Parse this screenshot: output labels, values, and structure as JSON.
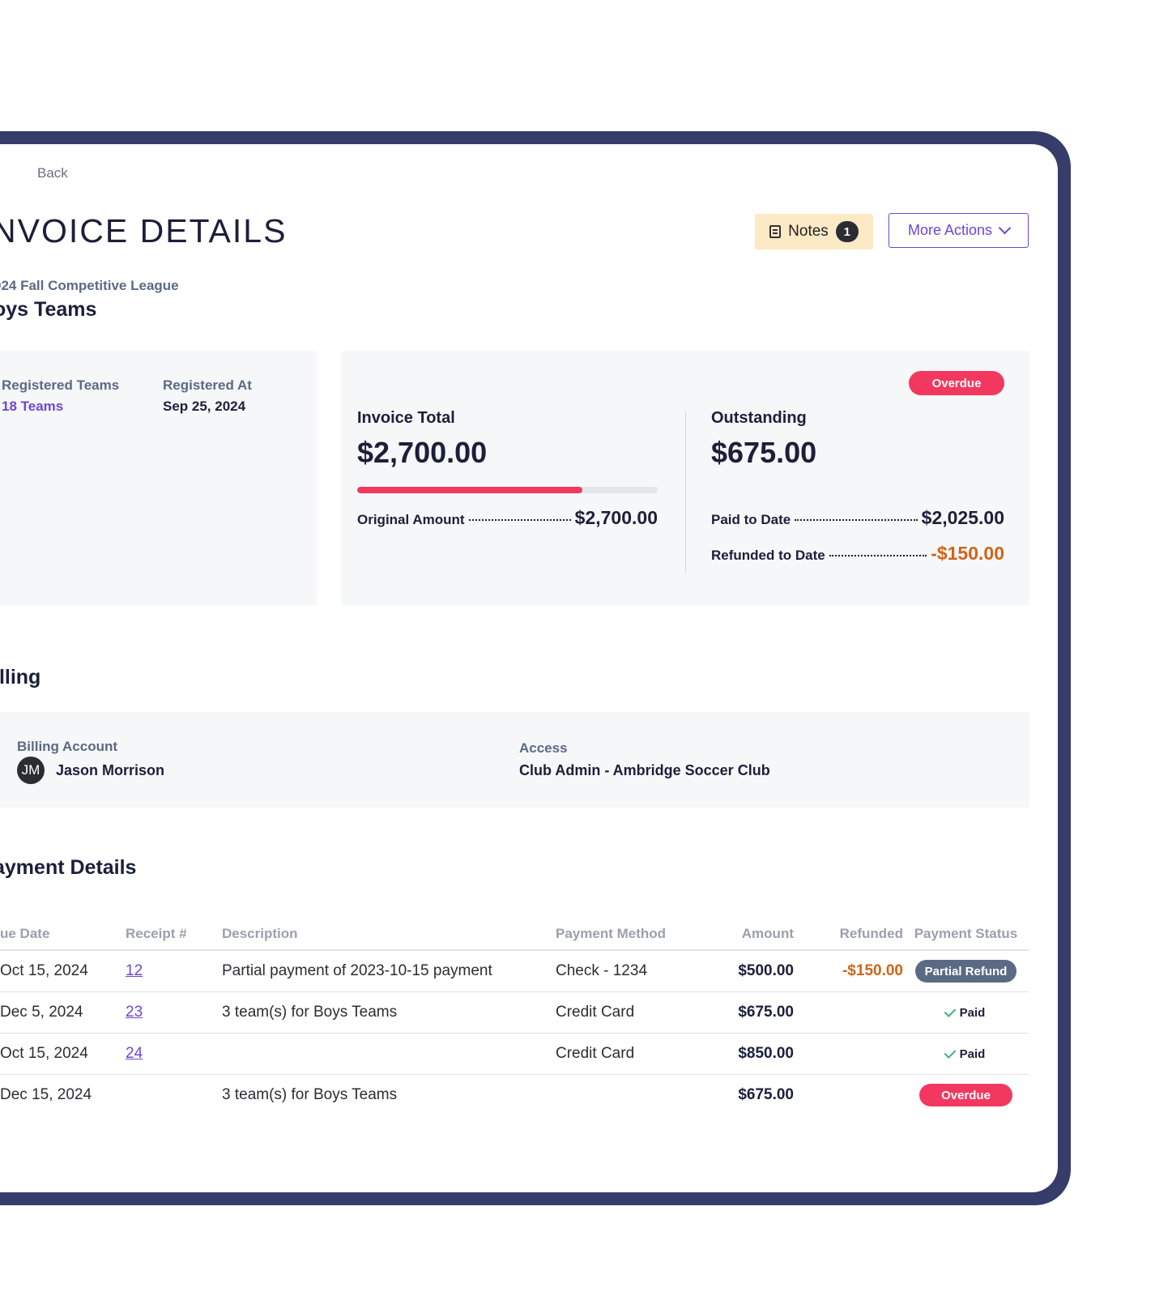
{
  "nav": {
    "back_label": "Back"
  },
  "page": {
    "title": "NVOICE DETAILS",
    "league": "024 Fall Competitive League",
    "group": "oys Teams"
  },
  "actions": {
    "notes_label": "Notes",
    "notes_count": "1",
    "more_actions_label": "More Actions"
  },
  "registration": {
    "teams_label": "Registered Teams",
    "teams_value": "18 Teams",
    "registered_at_label": "Registered At",
    "registered_at_value": "Sep 25, 2024"
  },
  "invoice": {
    "status_badge": "Overdue",
    "total_label": "Invoice Total",
    "total_value": "$2,700.00",
    "paid_fraction": 0.75,
    "original_label": "Original Amount",
    "original_value": "$2,700.00",
    "outstanding_label": "Outstanding",
    "outstanding_value": "$675.00",
    "paid_label": "Paid to Date",
    "paid_value": "$2,025.00",
    "refunded_label": "Refunded to Date",
    "refunded_value": "-$150.00"
  },
  "billing": {
    "section_title": "illing",
    "account_label": "Billing Account",
    "avatar_initials": "JM",
    "account_name": "Jason Morrison",
    "access_label": "Access",
    "access_value": "Club Admin - Ambridge Soccer Club"
  },
  "payments": {
    "section_title": "ayment Details",
    "columns": [
      "ue Date",
      "Receipt #",
      "Description",
      "Payment Method",
      "Amount",
      "Refunded",
      "Payment Status"
    ],
    "rows": [
      {
        "due_date": "Oct 15, 2024",
        "receipt": "12",
        "description": "Partial payment of 2023-10-15 payment",
        "method": "Check - 1234",
        "amount": "$500.00",
        "refunded": "-$150.00",
        "status": "Partial Refund"
      },
      {
        "due_date": "Dec 5, 2024",
        "receipt": "23",
        "description": "3 team(s) for Boys Teams",
        "method": "Credit Card",
        "amount": "$675.00",
        "refunded": "",
        "status": "Paid"
      },
      {
        "due_date": "Oct 15, 2024",
        "receipt": "24",
        "description": "",
        "method": "Credit Card",
        "amount": "$850.00",
        "refunded": "",
        "status": "Paid"
      },
      {
        "due_date": "Dec 15, 2024",
        "receipt": "",
        "description": "3 team(s) for Boys Teams",
        "method": "",
        "amount": "$675.00",
        "refunded": "",
        "status": "Overdue"
      }
    ]
  },
  "colors": {
    "frame": "#363d6b",
    "accent": "#6e45d6",
    "overdue": "#f2385f",
    "negative": "#d06418",
    "partial_refund": "#5a6a84",
    "paid_check": "#3cb371"
  }
}
